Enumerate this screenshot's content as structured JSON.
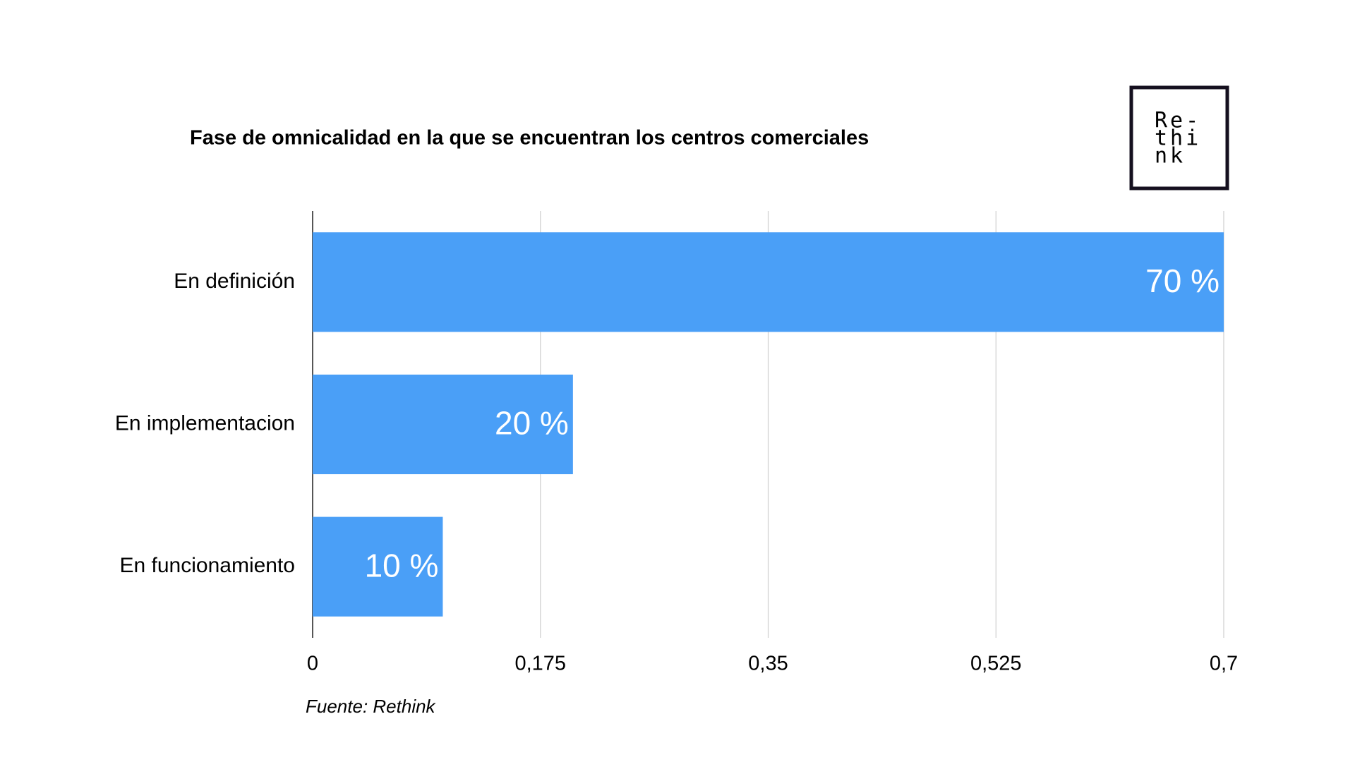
{
  "chart_data": {
    "type": "bar",
    "orientation": "horizontal",
    "title": "Fase de omnicalidad en la que se encuentran los centros comerciales",
    "categories": [
      "En definición",
      "En implementacion",
      "En funcionamiento"
    ],
    "values": [
      0.7,
      0.2,
      0.1
    ],
    "value_labels": [
      "70 %",
      "20 %",
      "10 %"
    ],
    "color": "#4a9ff7",
    "xlim": [
      0,
      0.7
    ],
    "xticks": [
      0,
      {
        "value": 0.175,
        "label": "0,175"
      },
      {
        "value": 0.35,
        "label": "0,35"
      },
      {
        "value": 0.525,
        "label": "0,525"
      },
      {
        "value": 0.7,
        "label": "0,7"
      }
    ],
    "grid": true,
    "source": "Fuente: Rethink"
  },
  "logo": [
    "Re-",
    "thi",
    "nk"
  ]
}
